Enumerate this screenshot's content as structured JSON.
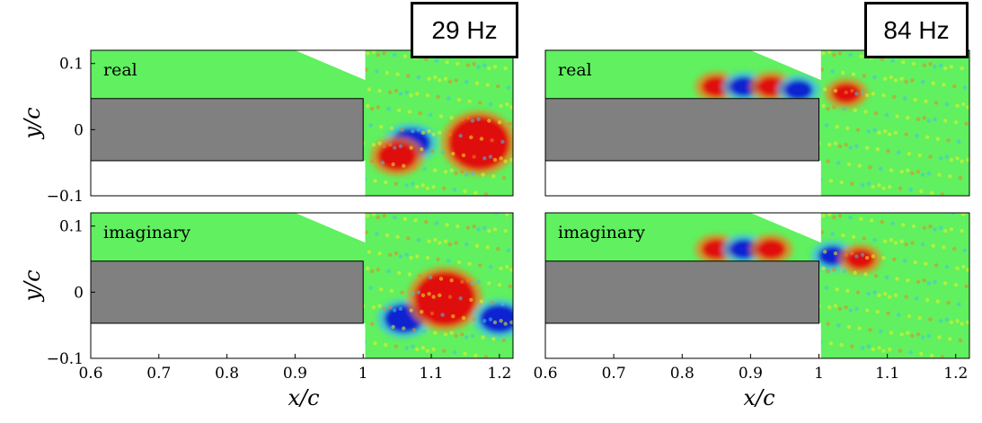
{
  "figure": {
    "frequencies": [
      "29 Hz",
      "84 Hz"
    ],
    "colors": {
      "background": "#60f060",
      "body": "#808080",
      "red": "#e01010",
      "blue": "#1020d0",
      "orange": "#f08020",
      "yellow": "#f0f020",
      "cyan": "#40c0f0"
    }
  },
  "chart_data": [
    {
      "type": "heatmap",
      "frequency": "29 Hz",
      "panel": "real",
      "xlabel": "",
      "ylabel": "y/c",
      "xlim": [
        0.6,
        1.22
      ],
      "ylim": [
        -0.1,
        0.12
      ],
      "yticks": [
        "0.1",
        "0",
        "−0.1"
      ],
      "xticks": [],
      "features": [
        {
          "x": 1.07,
          "y": -0.02,
          "sign": "negative"
        },
        {
          "x": 1.17,
          "y": -0.02,
          "sign": "positive"
        },
        {
          "x": 1.05,
          "y": -0.04,
          "sign": "positive"
        }
      ]
    },
    {
      "type": "heatmap",
      "frequency": "84 Hz",
      "panel": "real",
      "xlabel": "",
      "ylabel": "",
      "xlim": [
        0.6,
        1.22
      ],
      "ylim": [
        -0.1,
        0.12
      ],
      "yticks": [],
      "xticks": [],
      "features": [
        {
          "x": 0.85,
          "y": 0.065,
          "sign": "positive"
        },
        {
          "x": 0.89,
          "y": 0.065,
          "sign": "negative"
        },
        {
          "x": 0.93,
          "y": 0.065,
          "sign": "positive"
        },
        {
          "x": 0.97,
          "y": 0.06,
          "sign": "negative"
        },
        {
          "x": 1.04,
          "y": 0.055,
          "sign": "positive"
        }
      ]
    },
    {
      "type": "heatmap",
      "frequency": "29 Hz",
      "panel": "imaginary",
      "xlabel": "x/c",
      "ylabel": "y/c",
      "xlim": [
        0.6,
        1.22
      ],
      "ylim": [
        -0.1,
        0.12
      ],
      "yticks": [
        "0.1",
        "0",
        "−0.1"
      ],
      "xticks": [
        "0.6",
        "0.7",
        "0.8",
        "0.9",
        "1",
        "1.1",
        "1.2"
      ],
      "features": [
        {
          "x": 1.06,
          "y": -0.04,
          "sign": "negative"
        },
        {
          "x": 1.12,
          "y": -0.01,
          "sign": "positive"
        },
        {
          "x": 1.2,
          "y": -0.04,
          "sign": "negative"
        }
      ]
    },
    {
      "type": "heatmap",
      "frequency": "84 Hz",
      "panel": "imaginary",
      "xlabel": "x/c",
      "ylabel": "",
      "xlim": [
        0.6,
        1.22
      ],
      "ylim": [
        -0.1,
        0.12
      ],
      "yticks": [],
      "xticks": [
        "0.6",
        "0.7",
        "0.8",
        "0.9",
        "1",
        "1.1",
        "1.2"
      ],
      "features": [
        {
          "x": 0.85,
          "y": 0.065,
          "sign": "positive"
        },
        {
          "x": 0.89,
          "y": 0.065,
          "sign": "negative"
        },
        {
          "x": 0.93,
          "y": 0.065,
          "sign": "positive"
        },
        {
          "x": 1.02,
          "y": 0.055,
          "sign": "negative"
        },
        {
          "x": 1.06,
          "y": 0.05,
          "sign": "positive"
        }
      ]
    }
  ]
}
